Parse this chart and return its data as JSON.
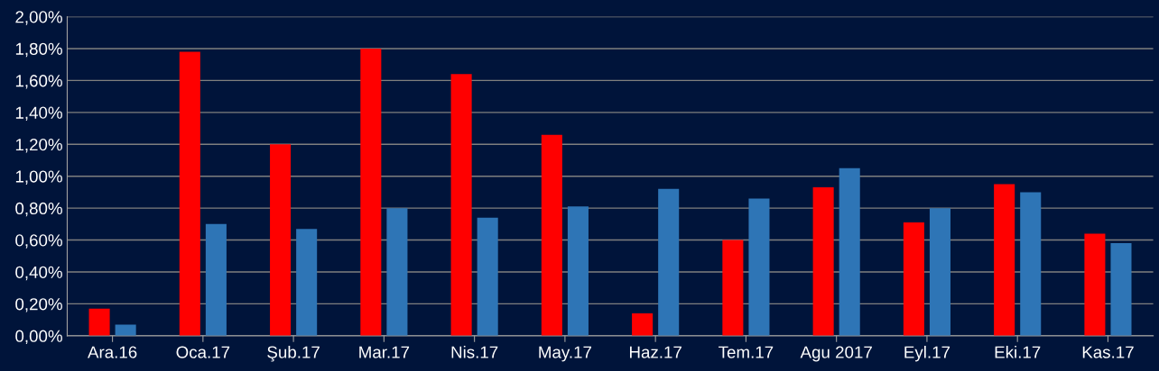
{
  "chart_data": {
    "type": "bar",
    "categories": [
      "Ara.16",
      "Oca.17",
      "Şub.17",
      "Mar.17",
      "Nis.17",
      "May.17",
      "Haz.17",
      "Tem.17",
      "Agu 2017",
      "Eyl.17",
      "Eki.17",
      "Kas.17"
    ],
    "series": [
      {
        "color": "#ff0000",
        "values": [
          0.17,
          1.78,
          1.2,
          1.8,
          1.64,
          1.26,
          0.14,
          0.6,
          0.93,
          0.71,
          0.95,
          0.64
        ]
      },
      {
        "color": "#2e75b6",
        "values": [
          0.07,
          0.7,
          0.67,
          0.8,
          0.74,
          0.81,
          0.92,
          0.86,
          1.05,
          0.8,
          0.9,
          0.58
        ]
      }
    ],
    "ylim": [
      0,
      2.0
    ],
    "yticks": [
      {
        "value": 0,
        "label": "0,00%"
      },
      {
        "value": 0.2,
        "label": "0,20%"
      },
      {
        "value": 0.4,
        "label": "0,40%"
      },
      {
        "value": 0.6,
        "label": "0,60%"
      },
      {
        "value": 0.8,
        "label": "0,80%"
      },
      {
        "value": 1.0,
        "label": "1,00%"
      },
      {
        "value": 1.2,
        "label": "1,20%"
      },
      {
        "value": 1.4,
        "label": "1,40%"
      },
      {
        "value": 1.6,
        "label": "1,60%"
      },
      {
        "value": 1.8,
        "label": "1,80%"
      },
      {
        "value": 2.0,
        "label": "2,00%"
      }
    ],
    "grid": "y"
  }
}
